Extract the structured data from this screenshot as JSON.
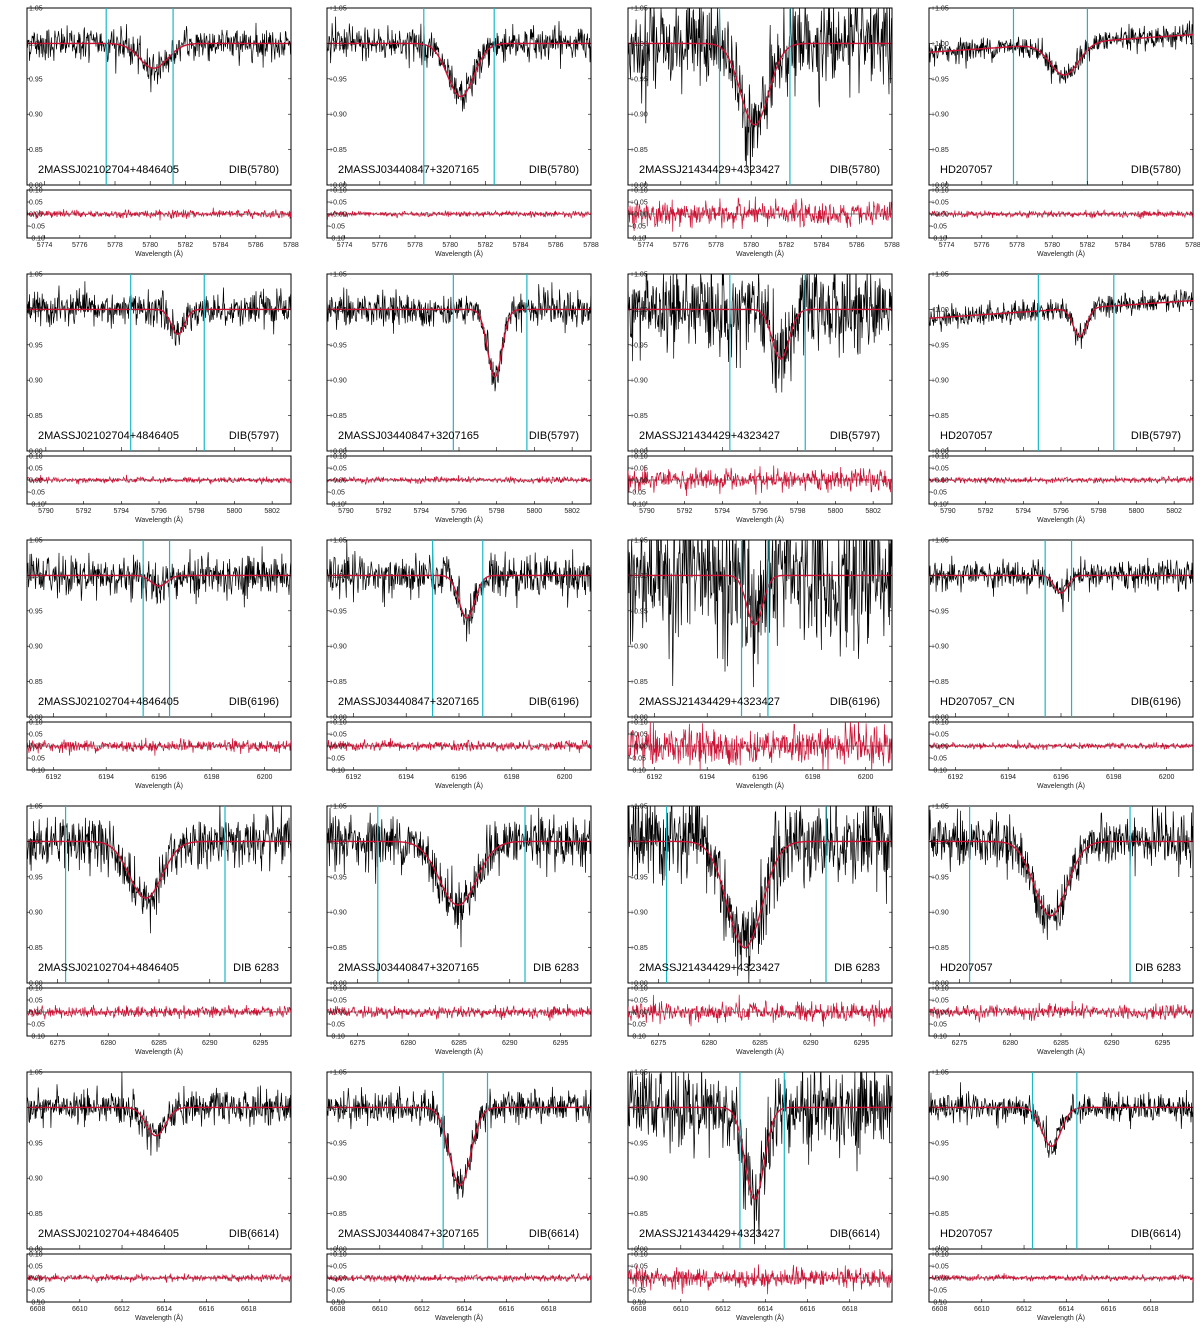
{
  "colors": {
    "observed": "#000000",
    "fit": "#cc1133",
    "marker": "#1bb8c4",
    "residual": "#cc1133"
  },
  "chart_data": {
    "type": "line",
    "layout": "5 rows x 4 columns of spectral fit panels, each with a residual subpanel",
    "xlabel": "Wavelength (Å)",
    "stars": [
      "2MASSJ02102704+4846405",
      "2MASSJ03440847+3207165",
      "2MASSJ21434429+4323427",
      "HD207057"
    ],
    "flux_ticks": [
      "1.05",
      "1.00",
      "0.95",
      "0.90",
      "0.85",
      "0.80"
    ],
    "flux_ticks_alt": [
      "+1.05",
      "+1.00",
      "+0.95",
      "+0.90",
      "+0.85",
      "+0.80"
    ],
    "resid_ticks": [
      "0.10",
      "0.05",
      "0.00",
      "-0.05",
      "-0.10"
    ],
    "resid_ticks_alt": [
      "+0.10",
      "+0.05",
      "+0.00",
      "-0.05",
      "-0.10"
    ],
    "ylim": [
      0.8,
      1.05
    ],
    "resid_ylim": [
      -0.1,
      0.1
    ],
    "rows": [
      {
        "dib": "DIB(5780)",
        "xlim": [
          5773,
          5788
        ],
        "xticks": [
          "5774",
          "5776",
          "5778",
          "5780",
          "5782",
          "5784",
          "5786",
          "5788"
        ],
        "panels": [
          {
            "star": "2MASSJ02102704+4846405",
            "label": "DIB(5780)",
            "center": 5780.2,
            "depth": 0.035,
            "sigma": 0.8,
            "cont_slope": 0.0,
            "noise": 0.012,
            "markers": [
              5777.5,
              5781.3
            ],
            "resid_noise": 0.008
          },
          {
            "star": "2MASSJ03440847+3207165",
            "label": "DIB(5780)",
            "center": 5780.6,
            "depth": 0.075,
            "sigma": 0.75,
            "cont_slope": 0.0,
            "noise": 0.012,
            "markers": [
              5778.5,
              5782.5
            ],
            "resid_noise": 0.006
          },
          {
            "star": "2MASSJ21434429+4323427",
            "label": "DIB(5780)",
            "center": 5780.2,
            "depth": 0.115,
            "sigma": 0.8,
            "cont_slope": 0.0,
            "noise": 0.03,
            "markers": [
              5778.2,
              5782.2
            ],
            "resid_noise": 0.025
          },
          {
            "star": "HD207057",
            "label": "DIB(5780)",
            "center": 5780.7,
            "depth": 0.045,
            "sigma": 0.8,
            "cont_slope": 0.0025,
            "noise": 0.008,
            "markers": [
              5777.8,
              5782.0
            ],
            "resid_noise": 0.007
          }
        ]
      },
      {
        "dib": "DIB(5797)",
        "xlim": [
          5789,
          5803
        ],
        "xticks": [
          "5790",
          "5792",
          "5794",
          "5796",
          "5798",
          "5800",
          "5802"
        ],
        "panels": [
          {
            "star": "2MASSJ02102704+4846405",
            "label": "DIB(5797)",
            "center": 5797.0,
            "depth": 0.035,
            "sigma": 0.35,
            "cont_slope": 0.0,
            "noise": 0.012,
            "markers": [
              5794.5,
              5798.4
            ],
            "resid_noise": 0.006
          },
          {
            "star": "2MASSJ03440847+3207165",
            "label": "DIB(5797)",
            "center": 5797.9,
            "depth": 0.095,
            "sigma": 0.38,
            "cont_slope": 0.0,
            "noise": 0.012,
            "markers": [
              5795.7,
              5799.6
            ],
            "resid_noise": 0.006
          },
          {
            "star": "2MASSJ21434429+4323427",
            "label": "DIB(5797)",
            "center": 5797.1,
            "depth": 0.07,
            "sigma": 0.45,
            "cont_slope": 0.0,
            "noise": 0.03,
            "markers": [
              5794.4,
              5798.4
            ],
            "resid_noise": 0.022
          },
          {
            "star": "HD207057",
            "label": "DIB(5797)",
            "center": 5797.0,
            "depth": 0.04,
            "sigma": 0.35,
            "cont_slope": 0.0025,
            "noise": 0.008,
            "markers": [
              5794.8,
              5798.8
            ],
            "resid_noise": 0.006
          }
        ]
      },
      {
        "dib": "DIB(6196)",
        "xlim": [
          6191,
          6201
        ],
        "xticks": [
          "6192",
          "6194",
          "6196",
          "6198",
          "6200"
        ],
        "panels": [
          {
            "star": "2MASSJ02102704+4846405",
            "label": "DIB(6196)",
            "center": 6196.0,
            "depth": 0.015,
            "sigma": 0.3,
            "cont_slope": 0.0,
            "noise": 0.015,
            "markers": [
              6195.4,
              6196.4
            ],
            "resid_noise": 0.012
          },
          {
            "star": "2MASSJ03440847+3207165",
            "label": "DIB(6196)",
            "center": 6196.3,
            "depth": 0.06,
            "sigma": 0.3,
            "cont_slope": 0.0,
            "noise": 0.015,
            "markers": [
              6195.0,
              6196.9
            ],
            "resid_noise": 0.01
          },
          {
            "star": "2MASSJ21434429+4323427",
            "label": "DIB(6196)",
            "center": 6195.8,
            "depth": 0.07,
            "sigma": 0.3,
            "cont_slope": 0.0,
            "noise": 0.05,
            "markers": [
              6195.3,
              6196.3
            ],
            "resid_noise": 0.04
          },
          {
            "star": "HD207057_CN",
            "label": "DIB(6196)",
            "center": 6196.0,
            "depth": 0.025,
            "sigma": 0.25,
            "cont_slope": 0.0,
            "noise": 0.01,
            "markers": [
              6195.4,
              6196.4
            ],
            "resid_noise": 0.006
          }
        ]
      },
      {
        "dib": "DIB 6283",
        "xlim": [
          6272,
          6298
        ],
        "xticks": [
          "6275",
          "6280",
          "6285",
          "6290",
          "6295"
        ],
        "panels": [
          {
            "star": "2MASSJ02102704+4846405",
            "label": "DIB 6283",
            "center": 6283.7,
            "depth": 0.08,
            "sigma": 1.6,
            "cont_slope": 0.0,
            "noise": 0.018,
            "markers": [
              6275.8,
              6291.5
            ],
            "resid_noise": 0.012
          },
          {
            "star": "2MASSJ03440847+3207165",
            "label": "DIB 6283",
            "center": 6284.9,
            "depth": 0.09,
            "sigma": 1.8,
            "cont_slope": 0.0,
            "noise": 0.018,
            "markers": [
              6277.0,
              6291.5
            ],
            "resid_noise": 0.012
          },
          {
            "star": "2MASSJ21434429+4323427",
            "label": "DIB 6283",
            "center": 6283.5,
            "depth": 0.15,
            "sigma": 1.7,
            "cont_slope": 0.0,
            "noise": 0.03,
            "markers": [
              6275.8,
              6291.5
            ],
            "resid_noise": 0.02
          },
          {
            "star": "HD207057",
            "label": "DIB 6283",
            "center": 6284.0,
            "depth": 0.105,
            "sigma": 1.6,
            "cont_slope": 0.0,
            "noise": 0.018,
            "markers": [
              6276.0,
              6291.8
            ],
            "resid_noise": 0.014
          }
        ]
      },
      {
        "dib": "DIB(6614)",
        "xlim": [
          6607.5,
          6620
        ],
        "xticks": [
          "6608",
          "6610",
          "6612",
          "6614",
          "6616",
          "6618"
        ],
        "panels": [
          {
            "star": "2MASSJ02102704+4846405",
            "label": "DIB(6614)",
            "center": 6613.6,
            "depth": 0.04,
            "sigma": 0.45,
            "cont_slope": 0.0,
            "noise": 0.012,
            "markers": [],
            "resid_noise": 0.007
          },
          {
            "star": "2MASSJ03440847+3207165",
            "label": "DIB(6614)",
            "center": 6613.8,
            "depth": 0.11,
            "sigma": 0.5,
            "cont_slope": 0.0,
            "noise": 0.012,
            "markers": [
              6613.0,
              6615.1
            ],
            "resid_noise": 0.007
          },
          {
            "star": "2MASSJ21434429+4323427",
            "label": "DIB(6614)",
            "center": 6613.5,
            "depth": 0.13,
            "sigma": 0.45,
            "cont_slope": 0.0,
            "noise": 0.03,
            "markers": [
              6612.8,
              6614.9
            ],
            "resid_noise": 0.02
          },
          {
            "star": "HD207057",
            "label": "DIB(6614)",
            "center": 6613.3,
            "depth": 0.055,
            "sigma": 0.45,
            "cont_slope": 0.0,
            "noise": 0.01,
            "markers": [
              6612.4,
              6614.5
            ],
            "resid_noise": 0.006
          }
        ]
      }
    ]
  }
}
